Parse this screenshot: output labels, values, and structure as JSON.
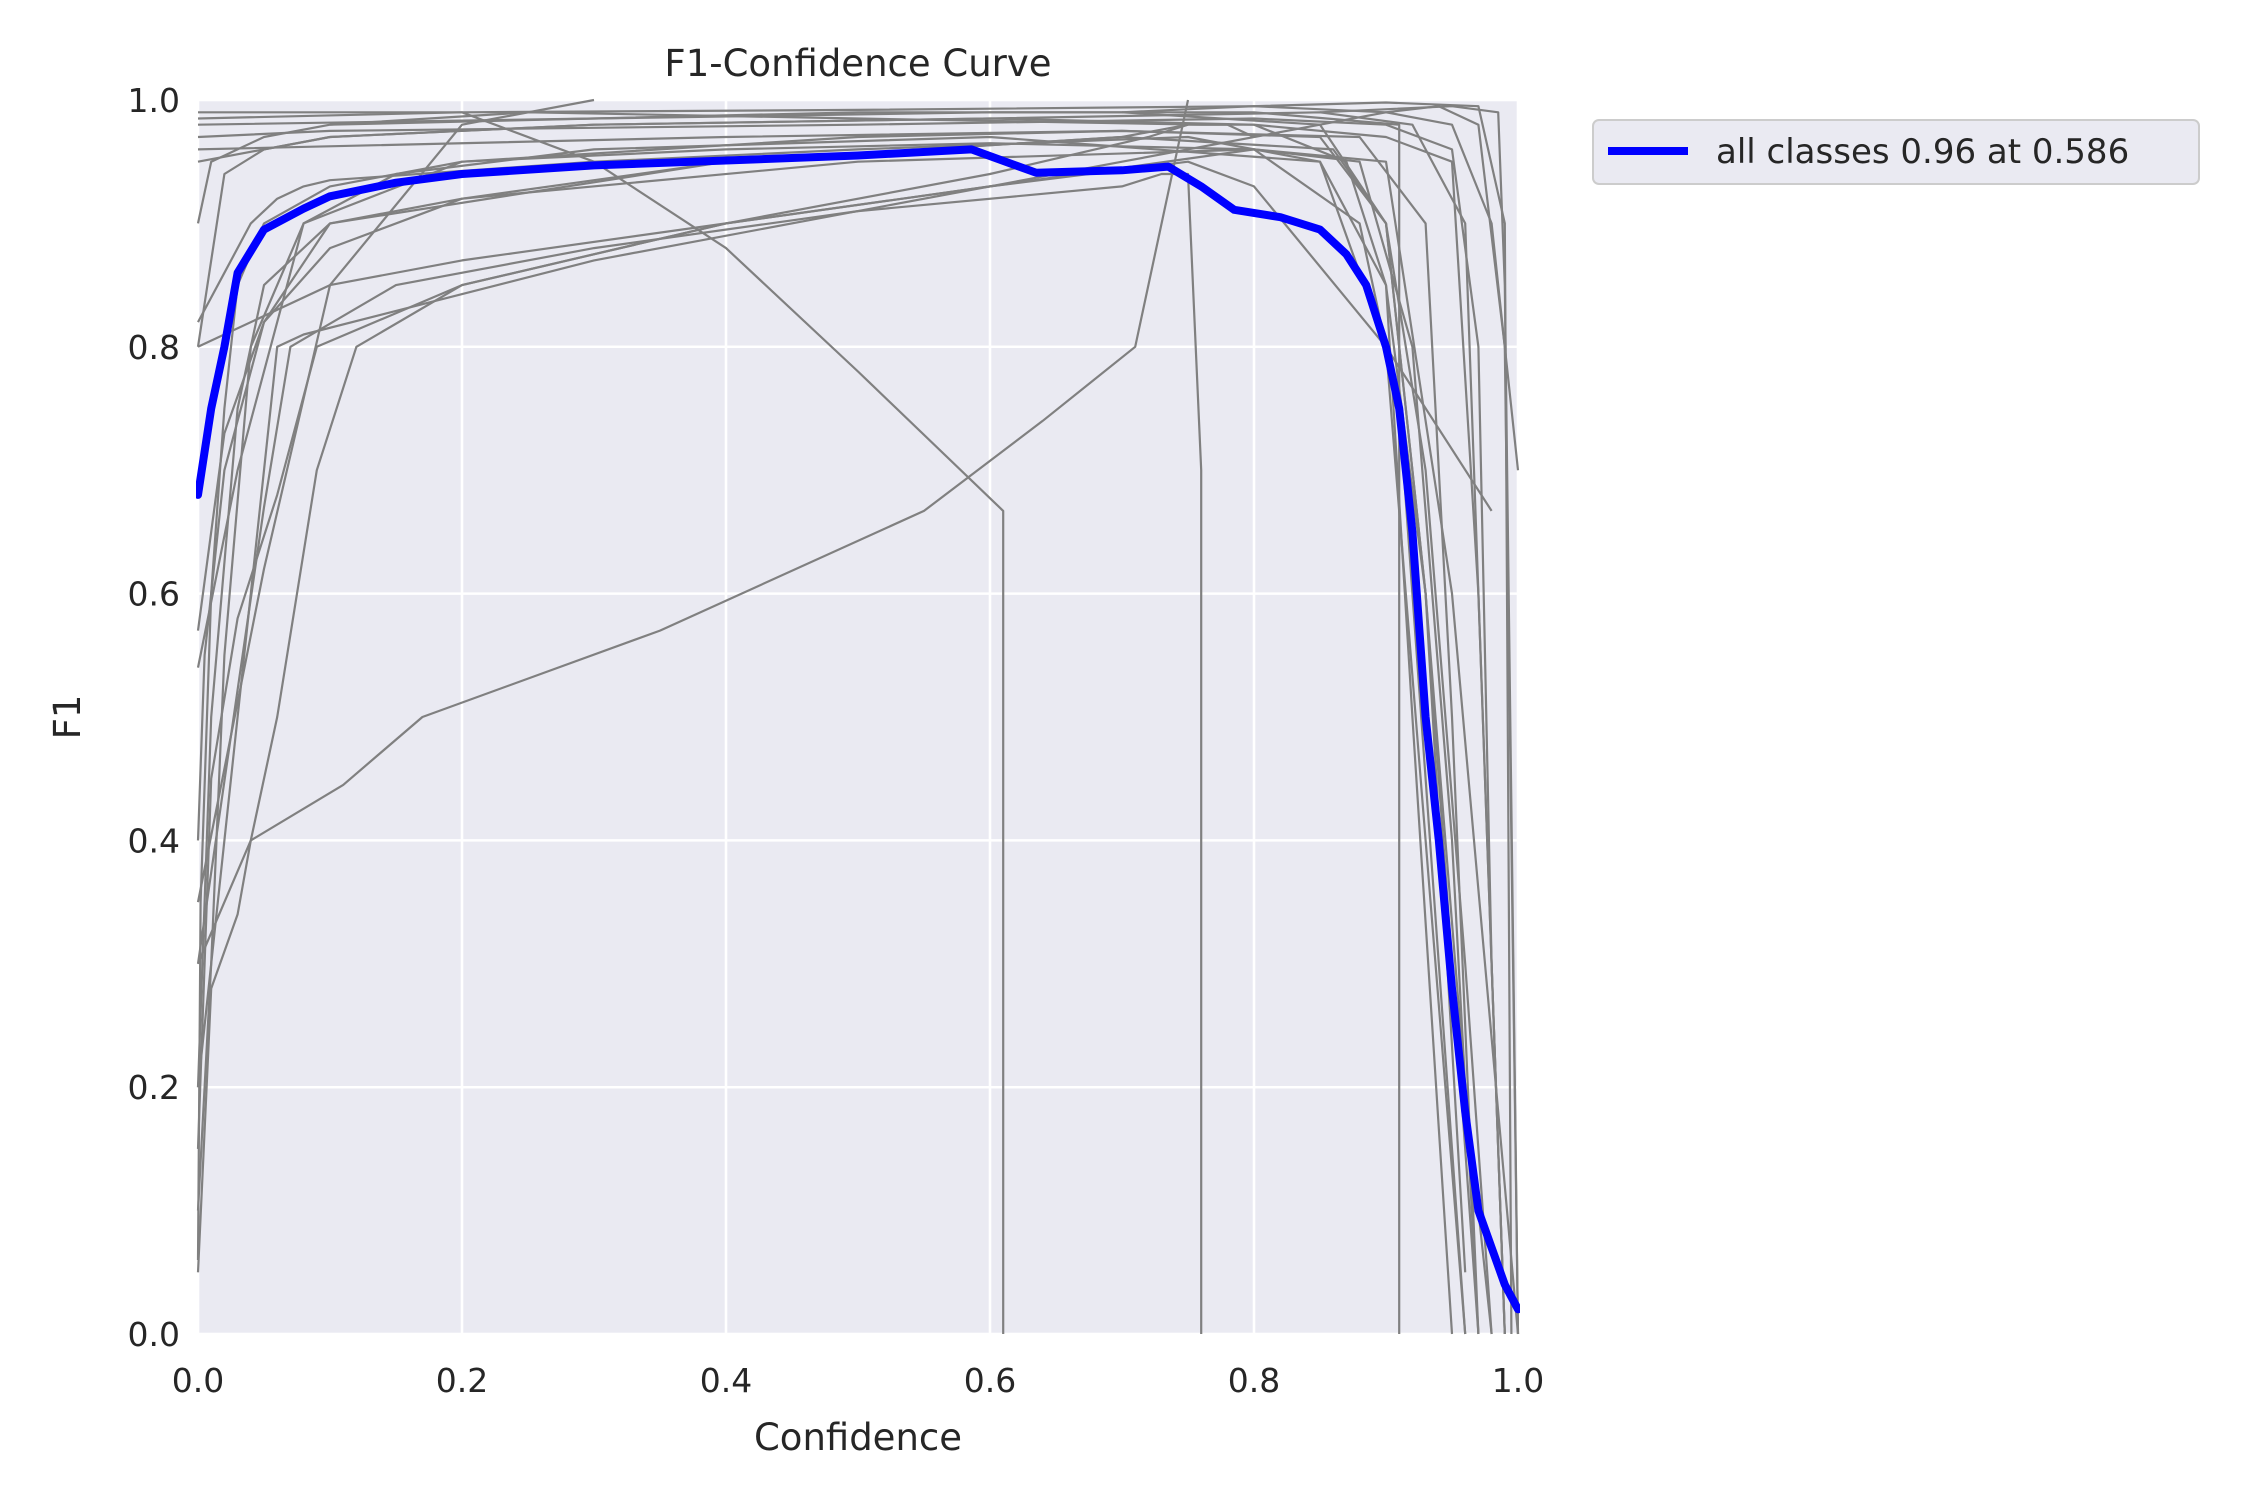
{
  "chart_data": {
    "type": "line",
    "title": "F1-Confidence Curve",
    "xlabel": "Confidence",
    "ylabel": "F1",
    "xlim": [
      0,
      1
    ],
    "ylim": [
      0,
      1
    ],
    "xticks": [
      "0.0",
      "0.2",
      "0.4",
      "0.6",
      "0.8",
      "1.0"
    ],
    "yticks": [
      "0.0",
      "0.2",
      "0.4",
      "0.6",
      "0.8",
      "1.0"
    ],
    "grid": true,
    "legend_position": "outside-top-right",
    "colors": {
      "background": "#eaeaf2",
      "grid": "#ffffff",
      "class": "#808080",
      "all": "#0000ff"
    },
    "all_series": {
      "name": "all classes 0.96 at 0.586",
      "x": [
        0.0,
        0.01,
        0.02,
        0.03,
        0.05,
        0.08,
        0.1,
        0.15,
        0.2,
        0.3,
        0.4,
        0.5,
        0.586,
        0.635,
        0.7,
        0.735,
        0.76,
        0.785,
        0.82,
        0.85,
        0.87,
        0.885,
        0.9,
        0.91,
        0.92,
        0.93,
        0.94,
        0.95,
        0.96,
        0.97,
        0.98,
        0.99,
        1.0
      ],
      "y": [
        0.68,
        0.75,
        0.8,
        0.86,
        0.895,
        0.912,
        0.922,
        0.933,
        0.94,
        0.947,
        0.951,
        0.955,
        0.96,
        0.941,
        0.943,
        0.946,
        0.93,
        0.911,
        0.905,
        0.895,
        0.875,
        0.85,
        0.8,
        0.75,
        0.65,
        0.5,
        0.4,
        0.28,
        0.18,
        0.1,
        0.07,
        0.04,
        0.02
      ]
    },
    "class_series": [
      {
        "x": [
          0.0,
          0.002,
          0.01,
          0.02,
          0.03,
          0.05,
          0.1,
          0.2,
          0.4,
          0.6,
          0.8,
          0.9,
          0.95,
          1.0
        ],
        "y": [
          0.06,
          0.35,
          0.6,
          0.75,
          0.85,
          0.9,
          0.93,
          0.95,
          0.96,
          0.965,
          0.96,
          0.95,
          0.6,
          0.0
        ]
      },
      {
        "x": [
          0.0,
          0.01,
          0.05,
          0.1,
          0.3,
          0.5,
          0.7,
          0.85,
          0.9,
          0.93,
          0.96,
          0.98
        ],
        "y": [
          0.9,
          0.95,
          0.97,
          0.98,
          0.985,
          0.99,
          0.99,
          0.98,
          0.9,
          0.7,
          0.3,
          0.0
        ]
      },
      {
        "x": [
          0.0,
          0.02,
          0.05,
          0.1,
          0.3,
          0.6,
          0.8,
          0.87,
          0.9,
          0.93,
          0.96,
          0.97
        ],
        "y": [
          0.8,
          0.94,
          0.96,
          0.97,
          0.98,
          0.985,
          0.98,
          0.95,
          0.85,
          0.6,
          0.15,
          0.0
        ]
      },
      {
        "x": [
          0.0,
          0.01,
          0.03,
          0.05,
          0.1,
          0.2,
          0.5,
          0.8,
          0.88,
          0.91,
          0.94,
          0.96
        ],
        "y": [
          0.2,
          0.5,
          0.75,
          0.85,
          0.9,
          0.92,
          0.95,
          0.96,
          0.9,
          0.75,
          0.3,
          0.0
        ]
      },
      {
        "x": [
          0.0,
          0.01,
          0.02,
          0.04,
          0.08,
          0.15,
          0.3,
          0.6,
          0.85,
          0.9,
          0.92,
          0.95
        ],
        "y": [
          0.1,
          0.3,
          0.55,
          0.8,
          0.9,
          0.94,
          0.96,
          0.97,
          0.95,
          0.85,
          0.5,
          0.0
        ]
      },
      {
        "x": [
          0.0,
          0.01,
          0.02,
          0.03,
          0.04,
          0.06,
          0.09,
          0.12,
          0.2,
          0.4,
          0.6,
          0.8,
          0.88,
          0.92,
          0.95,
          0.97
        ],
        "y": [
          0.05,
          0.28,
          0.31,
          0.34,
          0.4,
          0.5,
          0.7,
          0.8,
          0.85,
          0.9,
          0.93,
          0.96,
          0.95,
          0.8,
          0.4,
          0.0
        ]
      },
      {
        "x": [
          0.0,
          0.005,
          0.02,
          0.05,
          0.1,
          0.2,
          0.4,
          0.7,
          0.86,
          0.9,
          0.93,
          0.96
        ],
        "y": [
          0.4,
          0.55,
          0.7,
          0.82,
          0.88,
          0.92,
          0.95,
          0.97,
          0.96,
          0.9,
          0.6,
          0.05
        ]
      },
      {
        "x": [
          0.0,
          0.03,
          0.08,
          0.2,
          0.5,
          0.7,
          0.85,
          0.9,
          0.93,
          0.96,
          0.98
        ],
        "y": [
          0.54,
          0.7,
          0.9,
          0.95,
          0.97,
          0.975,
          0.97,
          0.9,
          0.6,
          0.2,
          0.0
        ]
      },
      {
        "x": [
          0.0,
          0.02,
          0.05,
          0.1,
          0.4,
          0.7,
          0.75,
          0.8,
          0.9,
          0.95,
          0.97,
          0.99
        ],
        "y": [
          0.57,
          0.73,
          0.82,
          0.9,
          0.95,
          0.97,
          0.98,
          0.98,
          0.97,
          0.95,
          0.6,
          0.0
        ]
      },
      {
        "x": [
          0.0,
          0.1,
          0.3,
          0.6,
          0.85,
          0.92,
          0.96,
          0.99
        ],
        "y": [
          0.95,
          0.97,
          0.98,
          0.985,
          0.99,
          0.98,
          0.9,
          0.0
        ]
      },
      {
        "x": [
          0.0,
          0.2,
          0.5,
          0.8,
          0.9,
          0.95,
          0.98,
          1.0
        ],
        "y": [
          0.985,
          0.99,
          0.992,
          0.995,
          0.99,
          0.98,
          0.9,
          0.7
        ]
      },
      {
        "x": [
          0.0,
          0.3,
          0.6,
          0.8,
          0.91,
          0.91
        ],
        "y": [
          0.98,
          0.985,
          0.99,
          0.99,
          0.98,
          0.0
        ]
      },
      {
        "x": [
          0.0,
          0.02,
          0.04,
          0.06,
          0.08,
          0.1,
          0.3,
          0.5,
          0.75,
          0.85,
          0.9,
          0.93,
          0.96
        ],
        "y": [
          0.82,
          0.86,
          0.9,
          0.92,
          0.93,
          0.935,
          0.95,
          0.96,
          0.97,
          0.95,
          0.8,
          0.4,
          0.0
        ]
      },
      {
        "x": [
          0.0,
          0.04,
          0.11,
          0.17,
          0.35,
          0.55,
          0.64,
          0.71,
          0.73,
          0.74,
          0.75
        ],
        "y": [
          0.3,
          0.4,
          0.445,
          0.5,
          0.57,
          0.667,
          0.74,
          0.8,
          0.9,
          0.95,
          1.0
        ]
      },
      {
        "x": [
          0.0,
          0.1,
          0.2,
          0.4,
          0.6,
          0.75,
          0.8,
          0.9,
          0.98
        ],
        "y": [
          0.8,
          0.85,
          0.87,
          0.9,
          0.93,
          0.95,
          0.93,
          0.8,
          0.667
        ]
      },
      {
        "x": [
          0.0,
          0.2,
          0.3,
          0.4,
          0.5,
          0.61,
          0.61
        ],
        "y": [
          0.99,
          0.99,
          0.95,
          0.88,
          0.78,
          0.667,
          0.0
        ]
      },
      {
        "x": [
          0.0,
          0.05,
          0.07,
          0.15,
          0.3,
          0.5,
          0.7,
          0.73,
          0.75,
          0.76,
          0.76
        ],
        "y": [
          0.3,
          0.67,
          0.8,
          0.85,
          0.88,
          0.91,
          0.93,
          0.94,
          0.94,
          0.7,
          0.0
        ]
      },
      {
        "x": [
          0.0,
          0.05,
          0.1,
          0.2,
          0.3
        ],
        "y": [
          0.35,
          0.62,
          0.85,
          0.98,
          1.0
        ]
      },
      {
        "x": [
          0.1,
          0.25,
          0.5,
          0.76,
          0.78,
          0.8
        ],
        "y": [
          0.98,
          0.99,
          0.985,
          0.98,
          0.98,
          0.97
        ]
      },
      {
        "x": [
          0.0,
          0.01,
          0.03,
          0.06,
          0.09,
          0.2,
          0.4,
          0.6,
          0.72,
          0.75
        ],
        "y": [
          0.15,
          0.45,
          0.58,
          0.68,
          0.8,
          0.85,
          0.9,
          0.94,
          0.97,
          0.98
        ]
      },
      {
        "x": [
          0.0,
          0.06,
          0.08,
          0.3,
          0.7,
          0.9,
          0.94,
          0.97,
          0.99,
          1.0
        ],
        "y": [
          0.2,
          0.8,
          0.81,
          0.87,
          0.95,
          0.99,
          0.995,
          0.98,
          0.8,
          0.0
        ]
      },
      {
        "x": [
          0.0,
          0.1,
          0.5,
          0.8,
          0.9,
          0.95,
          0.97,
          0.98,
          0.99
        ],
        "y": [
          0.97,
          0.975,
          0.98,
          0.985,
          0.98,
          0.96,
          0.8,
          0.3,
          0.0
        ]
      },
      {
        "x": [
          0.0,
          0.4,
          0.7,
          0.88,
          0.93,
          0.95,
          0.97
        ],
        "y": [
          0.96,
          0.97,
          0.975,
          0.97,
          0.9,
          0.5,
          0.0
        ]
      },
      {
        "x": [
          0.7,
          0.8,
          0.9,
          0.97,
          0.99,
          0.995
        ],
        "y": [
          0.99,
          0.995,
          0.998,
          0.995,
          0.9,
          0.0
        ]
      },
      {
        "x": [
          0.85,
          0.95,
          0.985,
          0.99,
          1.0
        ],
        "y": [
          0.99,
          0.995,
          0.99,
          0.85,
          0.0
        ]
      }
    ]
  }
}
